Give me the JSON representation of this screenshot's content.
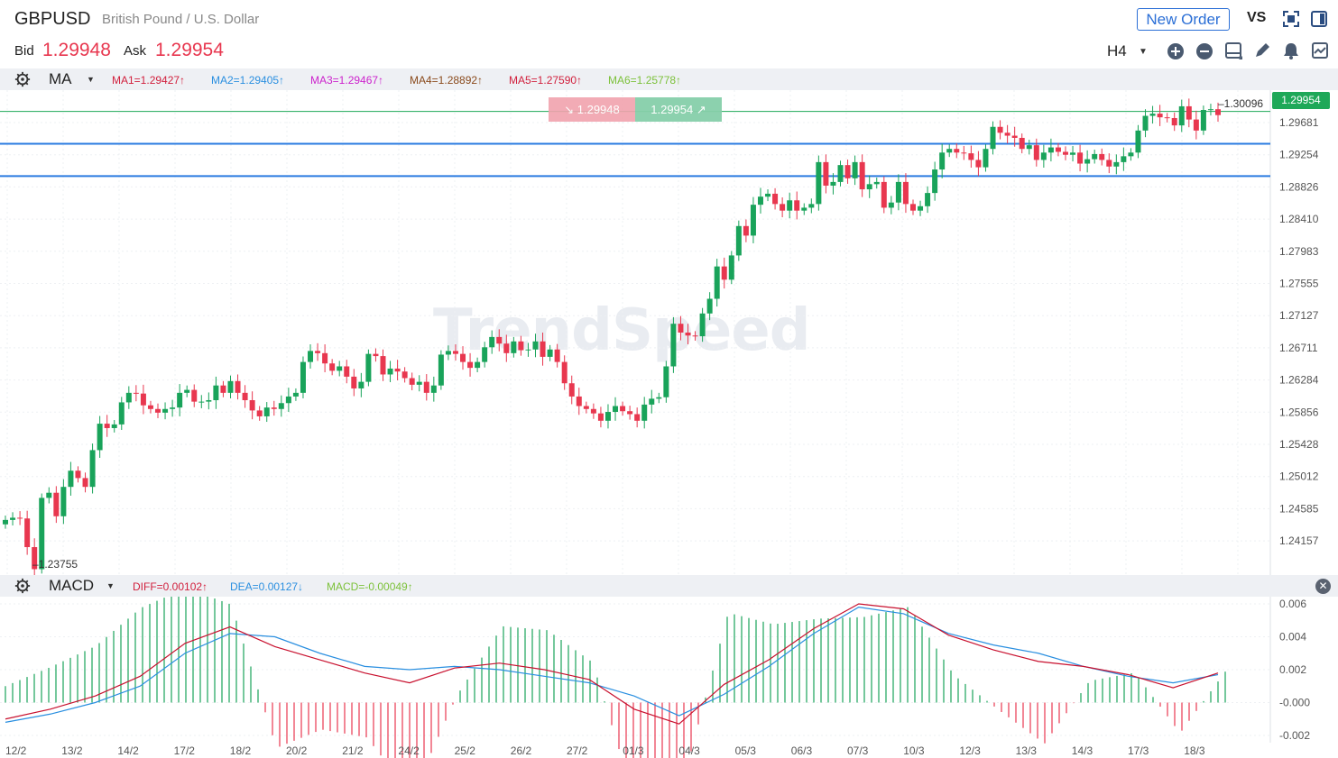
{
  "header": {
    "symbol": "GBPUSD",
    "description": "British Pound / U.S. Dollar",
    "bid_label": "Bid",
    "bid_value": "1.29948",
    "ask_label": "Ask",
    "ask_value": "1.29954",
    "new_order_label": "New Order",
    "vs_label": "VS",
    "timeframe": "H4",
    "toolbar_icons": [
      "fullscreen-icon",
      "layout-icon",
      "zoom-in-icon",
      "zoom-out-icon",
      "chart-type-icon",
      "draw-pencil-icon",
      "alert-bell-icon",
      "indicator-icon"
    ]
  },
  "ma_bar": {
    "indicator": "MA",
    "values": [
      {
        "label": "MA1=1.29427↑",
        "color": "#d11f3c"
      },
      {
        "label": "MA2=1.29405↑",
        "color": "#2a8fe0"
      },
      {
        "label": "MA3=1.29467↑",
        "color": "#cc22cc"
      },
      {
        "label": "MA4=1.28892↑",
        "color": "#8a4a1c"
      },
      {
        "label": "MA5=1.27590↑",
        "color": "#d11f3c"
      },
      {
        "label": "MA6=1.25778↑",
        "color": "#7cc13a"
      }
    ]
  },
  "trade": {
    "sell_label": "↘ 1.29948",
    "buy_label": "1.29954 ↗"
  },
  "price_axis": {
    "current_price": "1.29954",
    "labels": [
      "1.29681",
      "1.29254",
      "1.28826",
      "1.28410",
      "1.27983",
      "1.27555",
      "1.27127",
      "1.26711",
      "1.26284",
      "1.25856",
      "1.25428",
      "1.25012",
      "1.24585",
      "1.24157"
    ],
    "high_marker": "1.30096",
    "low_marker": "1.23755"
  },
  "watermark": "TrendSpeed",
  "macd_bar": {
    "indicator": "MACD",
    "values": [
      {
        "label": "DIFF=0.00102↑",
        "color": "#d11f3c"
      },
      {
        "label": "DEA=0.00127↓",
        "color": "#2a8fe0"
      },
      {
        "label": "MACD=-0.00049↑",
        "color": "#7cc13a"
      }
    ],
    "axis_labels": [
      "0.006",
      "0.004",
      "0.002",
      "-0.000",
      "-0.002"
    ]
  },
  "date_axis": [
    "12/2",
    "13/2",
    "14/2",
    "17/2",
    "18/2",
    "20/2",
    "21/2",
    "24/2",
    "25/2",
    "26/2",
    "27/2",
    "01/3",
    "04/3",
    "05/3",
    "06/3",
    "07/3",
    "10/3",
    "12/3",
    "13/3",
    "14/3",
    "17/3",
    "18/3"
  ],
  "chart_data": {
    "type": "candlestick",
    "symbol": "GBPUSD",
    "timeframe": "H4",
    "price_range": [
      1.237,
      1.303
    ],
    "key_levels": [
      1.3001,
      1.2957,
      1.2913
    ],
    "closes": [
      1.2445,
      1.2448,
      1.2447,
      1.2408,
      1.2378,
      1.2475,
      1.2482,
      1.245,
      1.249,
      1.2512,
      1.2502,
      1.249,
      1.254,
      1.2576,
      1.257,
      1.2575,
      1.2605,
      1.2618,
      1.2617,
      1.2601,
      1.2596,
      1.2591,
      1.2596,
      1.2598,
      1.2618,
      1.2622,
      1.2606,
      1.2606,
      1.2608,
      1.2628,
      1.2618,
      1.2634,
      1.2618,
      1.2608,
      1.2594,
      1.2586,
      1.2598,
      1.2596,
      1.2604,
      1.2613,
      1.2618,
      1.266,
      1.2675,
      1.2672,
      1.2658,
      1.2648,
      1.2654,
      1.264,
      1.2624,
      1.2633,
      1.2671,
      1.2668,
      1.2643,
      1.2651,
      1.2647,
      1.2638,
      1.2629,
      1.2633,
      1.2618,
      1.2628,
      1.267,
      1.2675,
      1.2671,
      1.266,
      1.2652,
      1.266,
      1.268,
      1.2694,
      1.2685,
      1.2672,
      1.2688,
      1.2676,
      1.2677,
      1.2688,
      1.2667,
      1.2677,
      1.266,
      1.2631,
      1.2613,
      1.26,
      1.2596,
      1.259,
      1.258,
      1.2592,
      1.26,
      1.2593,
      1.2589,
      1.258,
      1.2602,
      1.261,
      1.2612,
      1.2654,
      1.2712,
      1.27,
      1.2696,
      1.2695,
      1.2726,
      1.2746,
      1.279,
      1.2772,
      1.2805,
      1.2845,
      1.2832,
      1.2874,
      1.2885,
      1.2889,
      1.2875,
      1.2866,
      1.288,
      1.2866,
      1.287,
      1.2875,
      1.2932,
      1.29,
      1.2905,
      1.2928,
      1.291,
      1.2932,
      1.2895,
      1.2902,
      1.2905,
      1.287,
      1.2877,
      1.2905,
      1.2875,
      1.2866,
      1.2872,
      1.289,
      1.2922,
      1.2945,
      1.295,
      1.2945,
      1.2944,
      1.2935,
      1.2925,
      1.295,
      1.298,
      1.2972,
      1.2968,
      1.2965,
      1.295,
      1.2955,
      1.2935,
      1.2945,
      1.2952,
      1.2946,
      1.2942,
      1.2945,
      1.293,
      1.2936,
      1.2943,
      1.2935,
      1.2926,
      1.2932,
      1.294,
      1.2945,
      1.2975,
      1.2995,
      1.2998,
      1.2993,
      1.2992,
      1.2982,
      1.3008,
      1.299,
      1.2975,
      1.3003,
      1.3004,
      1.2996
    ],
    "macd": {
      "diff": [
        -0.001,
        -0.0004,
        0.0004,
        0.0016,
        0.0036,
        0.0046,
        0.0034,
        0.0026,
        0.0018,
        0.0012,
        0.0021,
        0.0024,
        0.002,
        0.0014,
        -0.0004,
        -0.0013,
        0.0011,
        0.0026,
        0.0045,
        0.006,
        0.0057,
        0.0041,
        0.0032,
        0.0025,
        0.0022,
        0.0017,
        0.0009,
        0.0018
      ],
      "dea": [
        -0.0012,
        -0.0007,
        0.0,
        0.001,
        0.003,
        0.0042,
        0.004,
        0.003,
        0.0022,
        0.002,
        0.0022,
        0.002,
        0.0016,
        0.0012,
        0.0004,
        -0.0008,
        0.0005,
        0.0022,
        0.0042,
        0.0058,
        0.0054,
        0.0042,
        0.0035,
        0.003,
        0.0022,
        0.0016,
        0.0012,
        0.0017
      ],
      "range": [
        -0.002,
        0.006
      ]
    }
  }
}
